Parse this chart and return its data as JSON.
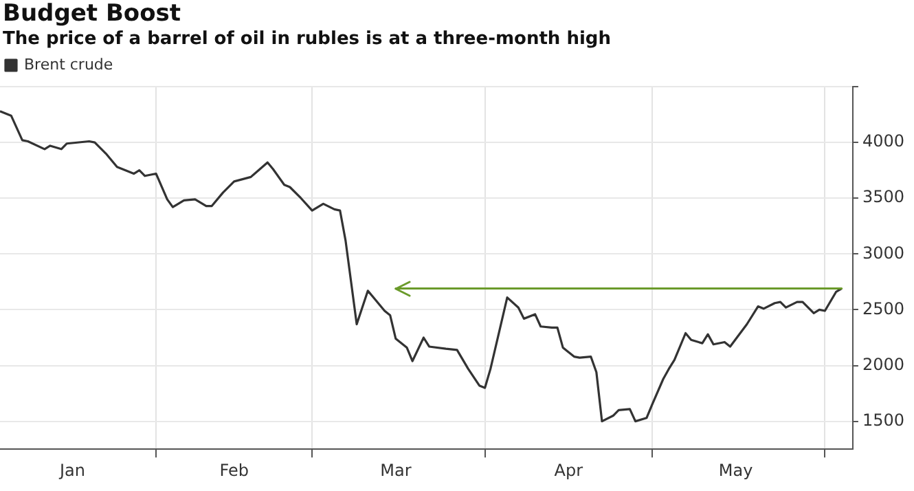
{
  "chart_data": {
    "type": "line",
    "title": "Budget Boost",
    "subtitle": "The price of a barrel of oil in rubles is at a three-month high",
    "x": [
      "--01-04",
      "--01-06",
      "--01-08",
      "--01-09",
      "--01-12",
      "--01-13",
      "--01-15",
      "--01-16",
      "--01-20",
      "--01-21",
      "--01-23",
      "--01-25",
      "--01-28",
      "--01-29",
      "--01-30",
      "--02-01",
      "--02-03",
      "--02-04",
      "--02-06",
      "--02-08",
      "--02-10",
      "--02-11",
      "--02-13",
      "--02-15",
      "--02-18",
      "--02-21",
      "--02-22",
      "--02-24",
      "--02-25",
      "--02-27",
      "--03-01",
      "--03-03",
      "--03-05",
      "--03-06",
      "--03-07",
      "--03-09",
      "--03-11",
      "--03-12",
      "--03-14",
      "--03-15",
      "--03-16",
      "--03-18",
      "--03-19",
      "--03-21",
      "--03-22",
      "--03-25",
      "--03-27",
      "--03-29",
      "--03-31",
      "--04-01",
      "--04-02",
      "--04-05",
      "--04-07",
      "--04-08",
      "--04-10",
      "--04-11",
      "--04-13",
      "--04-14",
      "--04-15",
      "--04-17",
      "--04-18",
      "--04-20",
      "--04-21",
      "--04-22",
      "--04-24",
      "--04-25",
      "--04-27",
      "--04-28",
      "--04-30",
      "--05-01",
      "--05-03",
      "--05-04",
      "--05-05",
      "--05-07",
      "--05-08",
      "--05-10",
      "--05-11",
      "--05-12",
      "--05-14",
      "--05-15",
      "--05-18",
      "--05-20",
      "--05-21",
      "--05-23",
      "--05-24",
      "--05-25",
      "--05-27",
      "--05-28",
      "--05-30",
      "--05-31",
      "--06-01",
      "--06-03",
      "--06-04"
    ],
    "series": [
      {
        "name": "Brent crude",
        "color": "#333333",
        "values": [
          4280,
          4240,
          4020,
          4010,
          3940,
          3970,
          3940,
          3990,
          4010,
          4000,
          3900,
          3780,
          3720,
          3750,
          3700,
          3720,
          3490,
          3420,
          3480,
          3490,
          3430,
          3430,
          3550,
          3650,
          3690,
          3820,
          3760,
          3620,
          3600,
          3500,
          3390,
          3450,
          3400,
          3390,
          3120,
          2370,
          2670,
          2610,
          2490,
          2450,
          2240,
          2160,
          2040,
          2250,
          2170,
          2150,
          2140,
          1970,
          1820,
          1800,
          1970,
          2610,
          2520,
          2420,
          2460,
          2350,
          2340,
          2340,
          2160,
          2080,
          2070,
          2080,
          1940,
          1500,
          1550,
          1600,
          1610,
          1500,
          1530,
          1650,
          1880,
          1970,
          2050,
          2290,
          2230,
          2200,
          2280,
          2190,
          2210,
          2170,
          2370,
          2530,
          2510,
          2560,
          2570,
          2520,
          2570,
          2570,
          2470,
          2500,
          2490,
          2660,
          2690
        ]
      }
    ],
    "xlim": [
      "--01-04",
      "--06-06"
    ],
    "xticks": [
      {
        "value": "--01-17",
        "label": "Jan"
      },
      {
        "value": "--02-01",
        "label": null
      },
      {
        "value": "--02-15",
        "label": "Feb"
      },
      {
        "value": "--03-01",
        "label": null
      },
      {
        "value": "--03-16",
        "label": "Mar"
      },
      {
        "value": "--04-01",
        "label": null
      },
      {
        "value": "--04-16",
        "label": "Apr"
      },
      {
        "value": "--05-01",
        "label": null
      },
      {
        "value": "--05-16",
        "label": "May"
      },
      {
        "value": "--06-01",
        "label": null
      }
    ],
    "ylim": [
      1250,
      4500
    ],
    "yticks": [
      1500,
      2000,
      2500,
      3000,
      3500,
      4000,
      {
        "value": 4500,
        "label": null
      }
    ],
    "ref_lines": [
      {
        "axis": "y",
        "value": 2690,
        "color": "#6a9a2a"
      }
    ],
    "grid": true,
    "legend": "top left",
    "marker": "none",
    "line_style": "solid"
  }
}
